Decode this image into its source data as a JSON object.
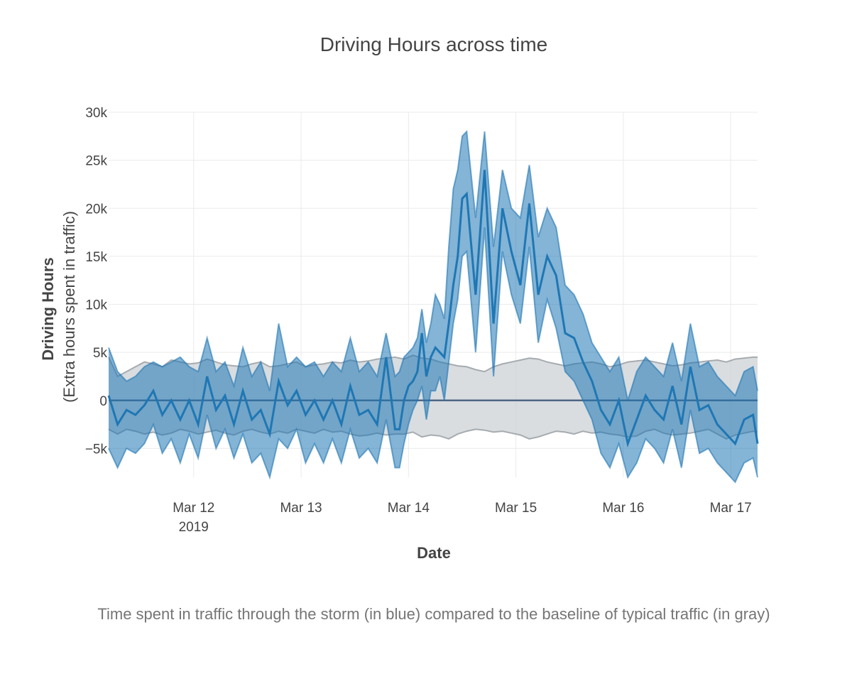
{
  "caption": "Time spent in traffic through the storm (in blue) compared to the baseline of typical traffic (in gray)",
  "colors": {
    "storm_line": "#1f77b4",
    "storm_band": "#1f77b4",
    "baseline_band": "#c9cfd3",
    "baseline_edge": "#a6abb0",
    "zero_line": "#506784",
    "grid": "#ebebeb"
  },
  "chart_data": {
    "type": "line",
    "title": "Driving Hours across time",
    "xlabel": "Date",
    "ylabel_bold": "Driving Hours",
    "ylabel_sub": "(Extra hours spent in traffic)",
    "xlim": [
      "2019-03-11 05:00",
      "2019-03-17 06:00"
    ],
    "ylim": [
      -8000,
      30000
    ],
    "grid": true,
    "x_ticks": [
      {
        "date": "2019-03-12",
        "label": "Mar 12",
        "sublabel": "2019"
      },
      {
        "date": "2019-03-13",
        "label": "Mar 13",
        "sublabel": ""
      },
      {
        "date": "2019-03-14",
        "label": "Mar 14",
        "sublabel": ""
      },
      {
        "date": "2019-03-15",
        "label": "Mar 15",
        "sublabel": ""
      },
      {
        "date": "2019-03-16",
        "label": "Mar 16",
        "sublabel": ""
      },
      {
        "date": "2019-03-17",
        "label": "Mar 17",
        "sublabel": ""
      }
    ],
    "y_ticks": [
      {
        "value": -5000,
        "label": "−5k"
      },
      {
        "value": 0,
        "label": "0"
      },
      {
        "value": 5000,
        "label": "5k"
      },
      {
        "value": 10000,
        "label": "10k"
      },
      {
        "value": 15000,
        "label": "15k"
      },
      {
        "value": 20000,
        "label": "20k"
      },
      {
        "value": 25000,
        "label": "25k"
      },
      {
        "value": 30000,
        "label": "30k"
      }
    ],
    "series": [
      {
        "role": "storm",
        "x": [
          "2019-03-11 05:00",
          "2019-03-11 07:00",
          "2019-03-11 09:00",
          "2019-03-11 11:00",
          "2019-03-11 13:00",
          "2019-03-11 15:00",
          "2019-03-11 17:00",
          "2019-03-11 19:00",
          "2019-03-11 21:00",
          "2019-03-11 23:00",
          "2019-03-12 01:00",
          "2019-03-12 03:00",
          "2019-03-12 05:00",
          "2019-03-12 07:00",
          "2019-03-12 09:00",
          "2019-03-12 11:00",
          "2019-03-12 13:00",
          "2019-03-12 15:00",
          "2019-03-12 17:00",
          "2019-03-12 19:00",
          "2019-03-12 21:00",
          "2019-03-12 23:00",
          "2019-03-13 01:00",
          "2019-03-13 03:00",
          "2019-03-13 05:00",
          "2019-03-13 07:00",
          "2019-03-13 09:00",
          "2019-03-13 11:00",
          "2019-03-13 13:00",
          "2019-03-13 15:00",
          "2019-03-13 17:00",
          "2019-03-13 19:00",
          "2019-03-13 21:00",
          "2019-03-13 22:00",
          "2019-03-13 23:00",
          "2019-03-14 00:00",
          "2019-03-14 01:00",
          "2019-03-14 02:00",
          "2019-03-14 03:00",
          "2019-03-14 04:00",
          "2019-03-14 05:00",
          "2019-03-14 06:00",
          "2019-03-14 07:00",
          "2019-03-14 08:00",
          "2019-03-14 09:00",
          "2019-03-14 10:00",
          "2019-03-14 11:00",
          "2019-03-14 12:00",
          "2019-03-14 13:00",
          "2019-03-14 15:00",
          "2019-03-14 17:00",
          "2019-03-14 19:00",
          "2019-03-14 21:00",
          "2019-03-14 23:00",
          "2019-03-15 01:00",
          "2019-03-15 03:00",
          "2019-03-15 05:00",
          "2019-03-15 07:00",
          "2019-03-15 09:00",
          "2019-03-15 11:00",
          "2019-03-15 13:00",
          "2019-03-15 15:00",
          "2019-03-15 17:00",
          "2019-03-15 19:00",
          "2019-03-15 21:00",
          "2019-03-15 23:00",
          "2019-03-16 01:00",
          "2019-03-16 03:00",
          "2019-03-16 05:00",
          "2019-03-16 07:00",
          "2019-03-16 09:00",
          "2019-03-16 11:00",
          "2019-03-16 13:00",
          "2019-03-16 15:00",
          "2019-03-16 17:00",
          "2019-03-16 19:00",
          "2019-03-16 21:00",
          "2019-03-16 23:00",
          "2019-03-17 01:00",
          "2019-03-17 03:00",
          "2019-03-17 05:00",
          "2019-03-17 06:00"
        ],
        "y": [
          500,
          -2500,
          -1000,
          -1500,
          -500,
          1000,
          -1500,
          0,
          -2000,
          0,
          -2500,
          2500,
          -1000,
          500,
          -2500,
          1000,
          -2000,
          -1000,
          -3500,
          2000,
          -500,
          1000,
          -1500,
          0,
          -2000,
          0,
          -2500,
          1500,
          -1500,
          -1000,
          -2500,
          4500,
          -3000,
          -3000,
          0,
          1500,
          2000,
          3000,
          7000,
          2500,
          4500,
          5500,
          5000,
          4500,
          8000,
          12000,
          15000,
          21000,
          21500,
          11000,
          24000,
          8000,
          20000,
          15500,
          12000,
          20500,
          11000,
          15000,
          13000,
          7000,
          6500,
          4000,
          2000,
          -1000,
          -2500,
          0,
          -4500,
          -2000,
          500,
          -1000,
          -2000,
          1500,
          -2500,
          3500,
          -1000,
          -500,
          -2500,
          -3500,
          -4500,
          -2000,
          -1500,
          -4500
        ],
        "upper": [
          5500,
          3000,
          2000,
          2500,
          3500,
          4000,
          3500,
          4000,
          4500,
          3500,
          3000,
          6500,
          3000,
          4000,
          1500,
          5500,
          2500,
          4000,
          1000,
          8000,
          3500,
          4500,
          3500,
          4000,
          2500,
          4000,
          3000,
          6500,
          3000,
          4000,
          2500,
          7000,
          2500,
          3000,
          4500,
          5000,
          5500,
          6500,
          9500,
          6000,
          8000,
          11000,
          10000,
          8500,
          16000,
          22000,
          24000,
          27500,
          28000,
          19000,
          28000,
          16000,
          24000,
          20000,
          19000,
          24500,
          17000,
          20000,
          18000,
          12000,
          11000,
          9000,
          6000,
          4500,
          3000,
          4500,
          0,
          3000,
          4500,
          3500,
          2500,
          6000,
          2000,
          8000,
          3500,
          4000,
          2500,
          1500,
          500,
          3000,
          3500,
          1000
        ],
        "lower": [
          -5000,
          -7000,
          -5000,
          -5500,
          -4500,
          -2500,
          -5500,
          -4000,
          -6500,
          -3500,
          -6000,
          -1500,
          -5000,
          -3000,
          -6000,
          -3500,
          -6500,
          -5500,
          -8000,
          -4000,
          -5000,
          -3000,
          -6500,
          -4500,
          -6500,
          -4000,
          -6500,
          -3000,
          -6000,
          -5000,
          -6500,
          -2000,
          -7000,
          -7000,
          -4500,
          -2500,
          -1000,
          0,
          1500,
          -2000,
          1000,
          1000,
          2500,
          0,
          4000,
          8000,
          10500,
          15000,
          15500,
          5000,
          18000,
          2500,
          15500,
          11000,
          8000,
          16000,
          6000,
          10500,
          7500,
          3000,
          2000,
          0,
          -2000,
          -5500,
          -7000,
          -4500,
          -8000,
          -6500,
          -4000,
          -5000,
          -6500,
          -3000,
          -7000,
          -1000,
          -5500,
          -5000,
          -6500,
          -7500,
          -8500,
          -6500,
          -6000,
          -8000
        ]
      },
      {
        "role": "baseline",
        "x": [
          "2019-03-11 05:00",
          "2019-03-11 07:00",
          "2019-03-11 09:00",
          "2019-03-11 11:00",
          "2019-03-11 13:00",
          "2019-03-11 15:00",
          "2019-03-11 17:00",
          "2019-03-11 19:00",
          "2019-03-11 21:00",
          "2019-03-11 23:00",
          "2019-03-12 01:00",
          "2019-03-12 03:00",
          "2019-03-12 05:00",
          "2019-03-12 07:00",
          "2019-03-12 09:00",
          "2019-03-12 11:00",
          "2019-03-12 13:00",
          "2019-03-12 15:00",
          "2019-03-12 17:00",
          "2019-03-12 19:00",
          "2019-03-12 21:00",
          "2019-03-12 23:00",
          "2019-03-13 01:00",
          "2019-03-13 03:00",
          "2019-03-13 05:00",
          "2019-03-13 07:00",
          "2019-03-13 09:00",
          "2019-03-13 11:00",
          "2019-03-13 13:00",
          "2019-03-13 15:00",
          "2019-03-13 17:00",
          "2019-03-13 19:00",
          "2019-03-13 21:00",
          "2019-03-13 23:00",
          "2019-03-14 01:00",
          "2019-03-14 03:00",
          "2019-03-14 05:00",
          "2019-03-14 07:00",
          "2019-03-14 09:00",
          "2019-03-14 11:00",
          "2019-03-14 13:00",
          "2019-03-14 15:00",
          "2019-03-14 17:00",
          "2019-03-14 19:00",
          "2019-03-14 21:00",
          "2019-03-14 23:00",
          "2019-03-15 01:00",
          "2019-03-15 03:00",
          "2019-03-15 05:00",
          "2019-03-15 07:00",
          "2019-03-15 09:00",
          "2019-03-15 11:00",
          "2019-03-15 13:00",
          "2019-03-15 15:00",
          "2019-03-15 17:00",
          "2019-03-15 19:00",
          "2019-03-15 21:00",
          "2019-03-15 23:00",
          "2019-03-16 01:00",
          "2019-03-16 03:00",
          "2019-03-16 05:00",
          "2019-03-16 07:00",
          "2019-03-16 09:00",
          "2019-03-16 11:00",
          "2019-03-16 13:00",
          "2019-03-16 15:00",
          "2019-03-16 17:00",
          "2019-03-16 19:00",
          "2019-03-16 21:00",
          "2019-03-16 23:00",
          "2019-03-17 01:00",
          "2019-03-17 03:00",
          "2019-03-17 05:00",
          "2019-03-17 06:00"
        ],
        "y": [
          0,
          0,
          0,
          0,
          0,
          0,
          0,
          0,
          0,
          0,
          0,
          0,
          0,
          0,
          0,
          0,
          0,
          0,
          0,
          0,
          0,
          0,
          0,
          0,
          0,
          0,
          0,
          0,
          0,
          0,
          0,
          0,
          0,
          0,
          0,
          0,
          0,
          0,
          0,
          0,
          0,
          0,
          0,
          0,
          0,
          0,
          0,
          0,
          0,
          0,
          0,
          0,
          0,
          0,
          0,
          0,
          0,
          0,
          0,
          0,
          0,
          0,
          0,
          0,
          0,
          0,
          0,
          0,
          0,
          0,
          0,
          0,
          0,
          0
        ],
        "upper": [
          4500,
          2500,
          3000,
          3500,
          4000,
          3800,
          3500,
          4200,
          4000,
          3800,
          3900,
          4300,
          4000,
          3700,
          3600,
          3500,
          3800,
          4000,
          3500,
          3600,
          3800,
          4000,
          3500,
          3700,
          3800,
          4000,
          3900,
          4200,
          4000,
          4100,
          4300,
          4400,
          4500,
          4300,
          4700,
          4400,
          4300,
          4000,
          3800,
          3600,
          3500,
          3200,
          3000,
          3500,
          3800,
          4000,
          4200,
          4400,
          4300,
          4000,
          3800,
          3600,
          3800,
          3900,
          4000,
          3800,
          3500,
          3700,
          4000,
          4100,
          4200,
          4000,
          3800,
          3600,
          3700,
          3900,
          4000,
          4100,
          4200,
          4000,
          4300,
          4400,
          4500,
          4500
        ],
        "lower": [
          -3000,
          -3500,
          -3000,
          -3200,
          -3500,
          -3300,
          -3600,
          -3400,
          -3000,
          -3200,
          -3500,
          -3300,
          -3100,
          -3400,
          -3600,
          -3200,
          -3000,
          -3300,
          -3500,
          -3200,
          -3400,
          -3000,
          -3200,
          -3400,
          -3000,
          -3300,
          -3200,
          -3500,
          -3700,
          -3600,
          -3400,
          -3600,
          -3500,
          -3500,
          -3300,
          -3800,
          -3600,
          -3700,
          -4000,
          -3500,
          -3200,
          -3000,
          -3100,
          -3300,
          -3200,
          -3400,
          -3600,
          -4000,
          -3800,
          -3500,
          -3200,
          -3300,
          -3500,
          -3200,
          -3400,
          -3300,
          -3500,
          -3600,
          -3800,
          -3700,
          -3200,
          -3000,
          -3400,
          -3600,
          -3500,
          -3400,
          -3200,
          -3000,
          -3500,
          -4000,
          -3600,
          -3400,
          -3200,
          -3300
        ]
      }
    ]
  }
}
